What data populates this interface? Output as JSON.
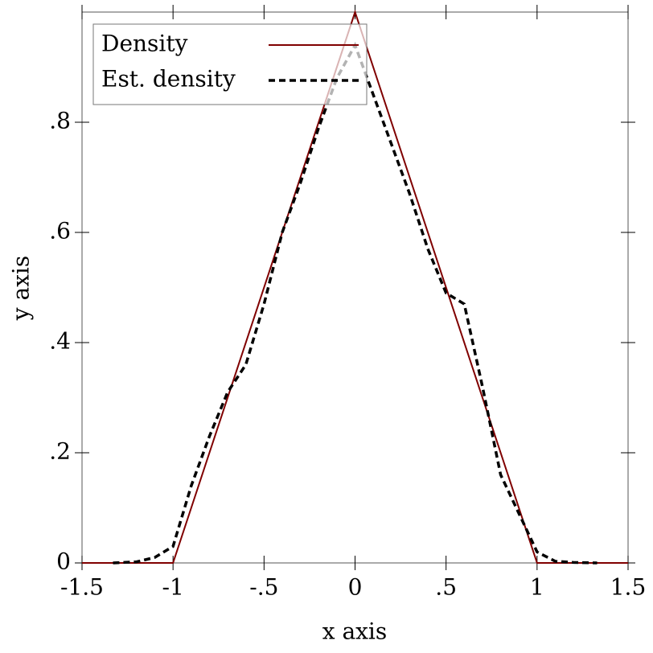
{
  "chart_data": {
    "type": "line",
    "xlabel": "x axis",
    "ylabel": "y axis",
    "xlim": [
      -1.5,
      1.5
    ],
    "ylim": [
      0,
      1
    ],
    "xticks": [
      -1.5,
      -1,
      {
        "value": -0.5,
        "label": "-.5"
      },
      0,
      {
        "value": 0.5,
        "label": ".5"
      },
      1,
      1.5
    ],
    "yticks": [
      0,
      {
        "value": 0.2,
        "label": ".2"
      },
      {
        "value": 0.4,
        "label": ".4"
      },
      {
        "value": 0.6,
        "label": ".6"
      },
      {
        "value": 0.8,
        "label": ".8"
      }
    ],
    "legend": "top-left",
    "series": [
      {
        "name": "Density",
        "color": "#800000",
        "line_style": "solid",
        "x": [
          -1.5,
          -1,
          0,
          1,
          1.5
        ],
        "values": [
          0,
          0,
          1,
          0,
          0
        ]
      },
      {
        "name": "Est. density",
        "color": "#000000",
        "line_style": "dashed",
        "x": [
          -1.33,
          -1.2,
          -1.1,
          -1.0,
          -0.9,
          -0.8,
          -0.7,
          -0.6,
          -0.5,
          -0.4,
          -0.3,
          -0.2,
          -0.1,
          0,
          0.1,
          0.2,
          0.3,
          0.4,
          0.5,
          0.6,
          0.7,
          0.8,
          0.9,
          1.0,
          1.1,
          1.2,
          1.33
        ],
        "values": [
          0,
          0.002,
          0.01,
          0.03,
          0.14,
          0.23,
          0.31,
          0.36,
          0.47,
          0.6,
          0.69,
          0.79,
          0.88,
          0.94,
          0.85,
          0.76,
          0.67,
          0.57,
          0.49,
          0.47,
          0.32,
          0.16,
          0.09,
          0.02,
          0.003,
          0.001,
          0
        ]
      }
    ]
  }
}
